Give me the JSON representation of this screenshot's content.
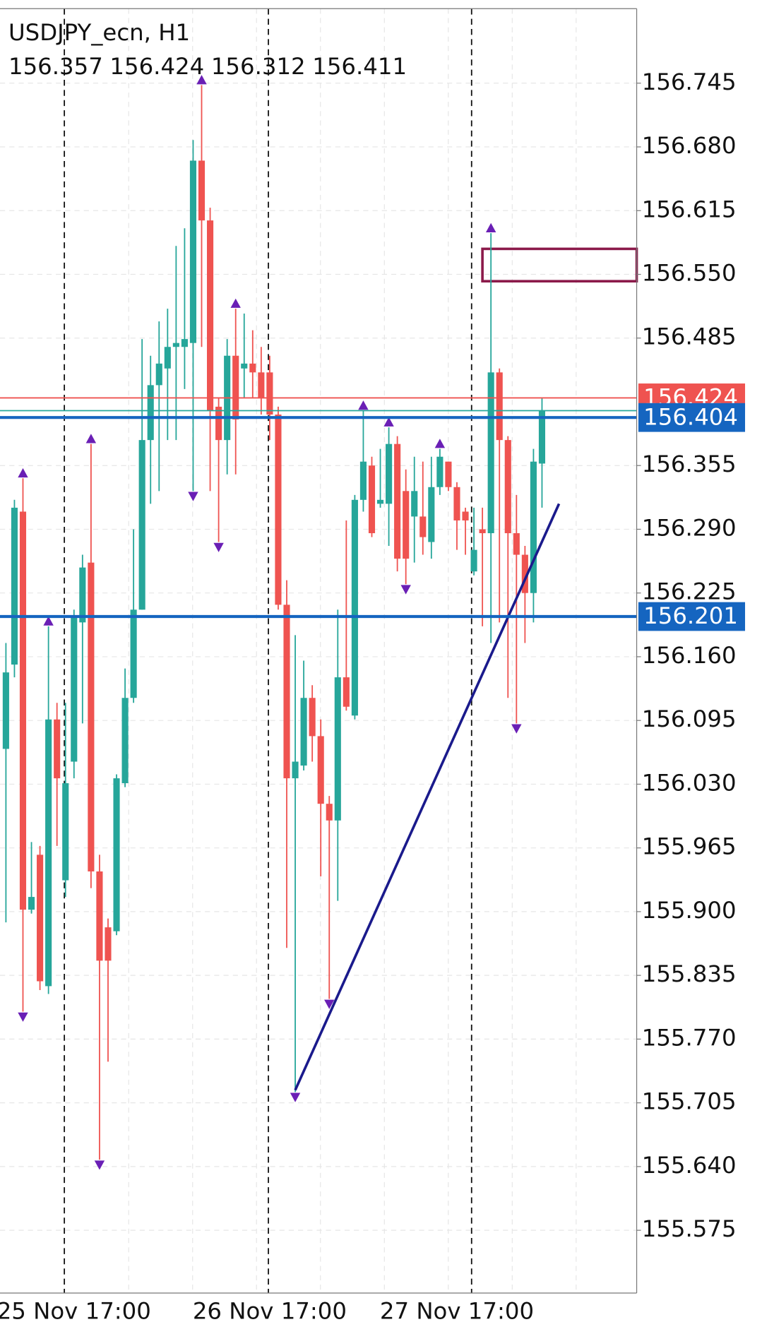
{
  "chart_data": {
    "type": "candlestick",
    "title": "USDJPY_ecn, H1",
    "ohlc": [
      156.357,
      156.424,
      156.312,
      156.411
    ],
    "categories": [
      null,
      null,
      null,
      null,
      null,
      null,
      null,
      null,
      "25 Nov 17:00",
      null,
      null,
      null,
      null,
      null,
      null,
      null,
      null,
      null,
      null,
      null,
      null,
      null,
      null,
      null,
      null,
      null,
      null,
      null,
      null,
      null,
      null,
      "26 Nov 17:00",
      null,
      null,
      null,
      null,
      null,
      null,
      null,
      null,
      null,
      null,
      null,
      null,
      null,
      null,
      null,
      null,
      null,
      null,
      null,
      null,
      null,
      "27 Nov 17:00",
      null,
      null,
      null,
      null,
      null,
      null,
      null,
      null,
      null,
      null
    ],
    "open": [
      156.066,
      156.152,
      156.308,
      155.902,
      155.958,
      155.824,
      156.096,
      155.932,
      156.053,
      156.195,
      156.256,
      155.941,
      155.884,
      155.88,
      156.031,
      156.118,
      156.208,
      156.381,
      156.437,
      156.454,
      156.476,
      156.476,
      156.48,
      156.666,
      156.605,
      156.415,
      156.381,
      156.467,
      156.454,
      156.459,
      156.45,
      156.45,
      156.407,
      156.213,
      156.036,
      156.049,
      156.118,
      156.079,
      156.01,
      155.993,
      156.139,
      156.1,
      156.32,
      156.355,
      156.316,
      156.316,
      156.377,
      156.329,
      156.303,
      156.303,
      156.277,
      156.333,
      156.359,
      156.333,
      156.308,
      156.247,
      156.29,
      156.286,
      156.45,
      156.381,
      156.286,
      156.264,
      156.225,
      156.357
    ],
    "high": [
      156.174,
      156.32,
      156.342,
      155.971,
      155.967,
      156.191,
      156.113,
      156.113,
      156.208,
      156.264,
      156.377,
      155.958,
      155.893,
      156.04,
      156.148,
      156.29,
      156.484,
      156.467,
      156.502,
      156.515,
      156.579,
      156.597,
      156.687,
      156.743,
      156.618,
      156.424,
      156.484,
      156.515,
      156.51,
      156.493,
      156.476,
      156.467,
      156.415,
      156.238,
      156.182,
      156.156,
      156.131,
      156.096,
      156.018,
      156.208,
      156.299,
      156.325,
      156.411,
      156.364,
      156.372,
      156.394,
      156.385,
      156.351,
      156.364,
      156.359,
      156.364,
      156.372,
      156.359,
      156.338,
      156.312,
      156.312,
      156.312,
      156.592,
      156.454,
      156.385,
      156.325,
      156.273,
      156.372,
      156.424
    ],
    "low": [
      155.889,
      156.139,
      155.798,
      155.898,
      155.82,
      155.816,
      155.967,
      155.915,
      156.036,
      156.092,
      155.924,
      155.647,
      155.747,
      155.876,
      156.027,
      156.113,
      156.208,
      156.316,
      156.329,
      156.381,
      156.381,
      156.433,
      156.329,
      156.476,
      156.329,
      156.277,
      156.346,
      156.346,
      156.424,
      156.424,
      156.407,
      156.381,
      156.208,
      155.863,
      155.716,
      156.044,
      156.053,
      155.936,
      155.811,
      155.911,
      156.105,
      156.096,
      156.308,
      156.282,
      156.312,
      156.273,
      156.247,
      156.234,
      156.256,
      156.264,
      156.26,
      156.325,
      156.329,
      156.269,
      156.264,
      156.243,
      156.191,
      156.174,
      156.195,
      156.118,
      156.092,
      156.174,
      156.195,
      156.312
    ],
    "close": [
      156.144,
      156.312,
      155.902,
      155.915,
      155.829,
      156.096,
      156.036,
      156.031,
      156.2,
      156.251,
      155.941,
      155.85,
      155.85,
      156.036,
      156.118,
      156.208,
      156.381,
      156.437,
      156.459,
      156.476,
      156.48,
      156.484,
      156.666,
      156.605,
      156.411,
      156.381,
      156.467,
      156.402,
      156.459,
      156.45,
      156.424,
      156.407,
      156.213,
      156.036,
      156.053,
      156.118,
      156.079,
      156.01,
      155.993,
      156.139,
      156.109,
      156.32,
      156.359,
      156.286,
      156.32,
      156.377,
      156.26,
      156.26,
      156.329,
      156.282,
      156.333,
      156.364,
      156.333,
      156.299,
      156.299,
      156.269,
      156.286,
      156.45,
      156.381,
      156.286,
      156.264,
      156.225,
      156.359,
      156.411
    ],
    "up_color": "#26a69a",
    "down_color": "#ef5350",
    "fractals_up": [
      2,
      5,
      10,
      23,
      27,
      42,
      45,
      51,
      57
    ],
    "fractals_down": [
      2,
      11,
      22,
      25,
      34,
      38,
      47,
      60
    ],
    "fractal_color": "#6a1fb5",
    "price_lines": [
      {
        "value": 156.424,
        "color": "#ef5350",
        "labeled": true
      },
      {
        "value": 156.411,
        "color": "#26a69a",
        "labeled": false
      },
      {
        "value": 156.404,
        "color": "#1565c0",
        "labeled": true
      },
      {
        "value": 156.201,
        "color": "#1565c0",
        "labeled": true
      }
    ],
    "zones": [
      {
        "top": 156.576,
        "bottom": 156.543,
        "start": 56,
        "color": "#8b1a4a"
      }
    ],
    "trendline": {
      "start": {
        "index": 34,
        "price": 155.718
      },
      "end": {
        "index": 65,
        "price": 156.316
      },
      "color": "#1a1a8c"
    },
    "ylim": [
      155.511,
      156.821
    ],
    "yticks": [
      156.745,
      {
        "value": 156.68,
        "label": "156.680"
      },
      156.615,
      {
        "value": 156.55,
        "label": "156.550"
      },
      156.485,
      156.355,
      {
        "value": 156.29,
        "label": "156.290"
      },
      156.225,
      {
        "value": 156.16,
        "label": "156.160"
      },
      156.095,
      {
        "value": 156.03,
        "label": "156.030"
      },
      155.965,
      {
        "value": 155.9,
        "label": "155.900"
      },
      155.835,
      {
        "value": 155.77,
        "label": "155.770"
      },
      155.705,
      {
        "value": 155.64,
        "label": "155.640"
      },
      155.575
    ],
    "grid": true
  }
}
